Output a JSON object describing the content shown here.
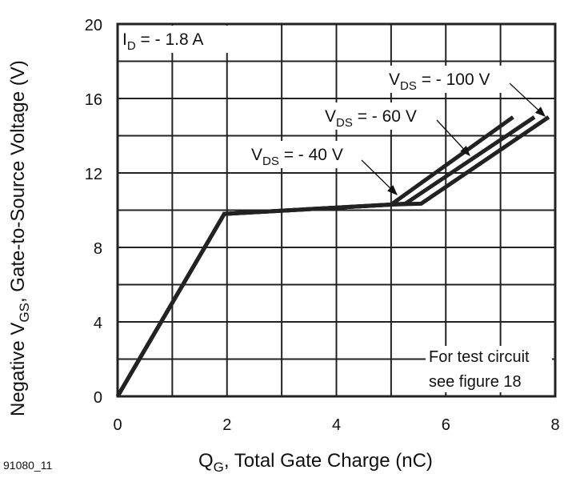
{
  "chart_data": {
    "type": "line",
    "xlabel": {
      "main": "Q",
      "sub": "G",
      "rest": ", Total Gate Charge (nC)"
    },
    "ylabel": {
      "pre": "Negative V",
      "sub": "GS",
      "rest": ",  Gate-to-Source Voltage (V)"
    },
    "xlim": [
      0,
      8
    ],
    "ylim": [
      0,
      20
    ],
    "xticks": [
      0,
      2,
      4,
      6,
      8
    ],
    "yticks": [
      0,
      4,
      8,
      12,
      16,
      20
    ],
    "grid": true,
    "grid_x_step": 1,
    "grid_y_step": 2,
    "condition": {
      "main": "I",
      "sub": "D",
      "rest": " = - 1.8 A"
    },
    "note": [
      "For test circuit",
      "see figure 18"
    ],
    "figure_id": "91080_11",
    "line_color": "#222222",
    "series": [
      {
        "name": {
          "main": "V",
          "sub": "DS",
          "rest": " = - 40 V"
        },
        "x": [
          0,
          1.95,
          5.0,
          7.23
        ],
        "y": [
          0,
          9.8,
          10.3,
          15.0
        ]
      },
      {
        "name": {
          "main": "V",
          "sub": "DS",
          "rest": " = - 60 V"
        },
        "x": [
          0,
          1.95,
          5.0,
          5.26,
          7.62
        ],
        "y": [
          0,
          9.8,
          10.3,
          10.35,
          15.0
        ]
      },
      {
        "name": {
          "main": "V",
          "sub": "DS",
          "rest": " = - 100 V"
        },
        "x": [
          0,
          1.95,
          5.0,
          5.55,
          7.88
        ],
        "y": [
          0,
          9.8,
          10.3,
          10.35,
          15.0
        ]
      }
    ]
  }
}
